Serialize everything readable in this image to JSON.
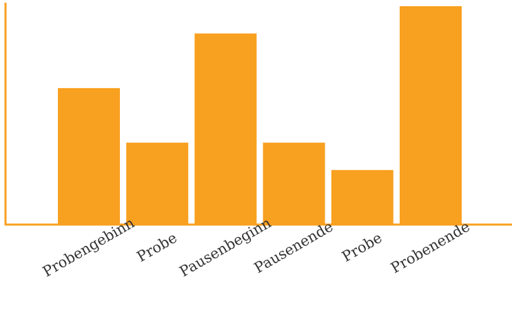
{
  "chart_data": {
    "type": "bar",
    "categories": [
      "Probengebinn",
      "Probe",
      "Pausenbeginn",
      "Pausenende",
      "Probe",
      "Probenende"
    ],
    "values": [
      5,
      3,
      7,
      3,
      2,
      8
    ],
    "ylim": [
      0,
      8
    ],
    "grid": false,
    "legend": "none",
    "title": "",
    "xlabel": "",
    "ylabel": ""
  },
  "colors": {
    "bar": "#F8A01F",
    "axis": "#F8A01F",
    "text": "#333333"
  }
}
